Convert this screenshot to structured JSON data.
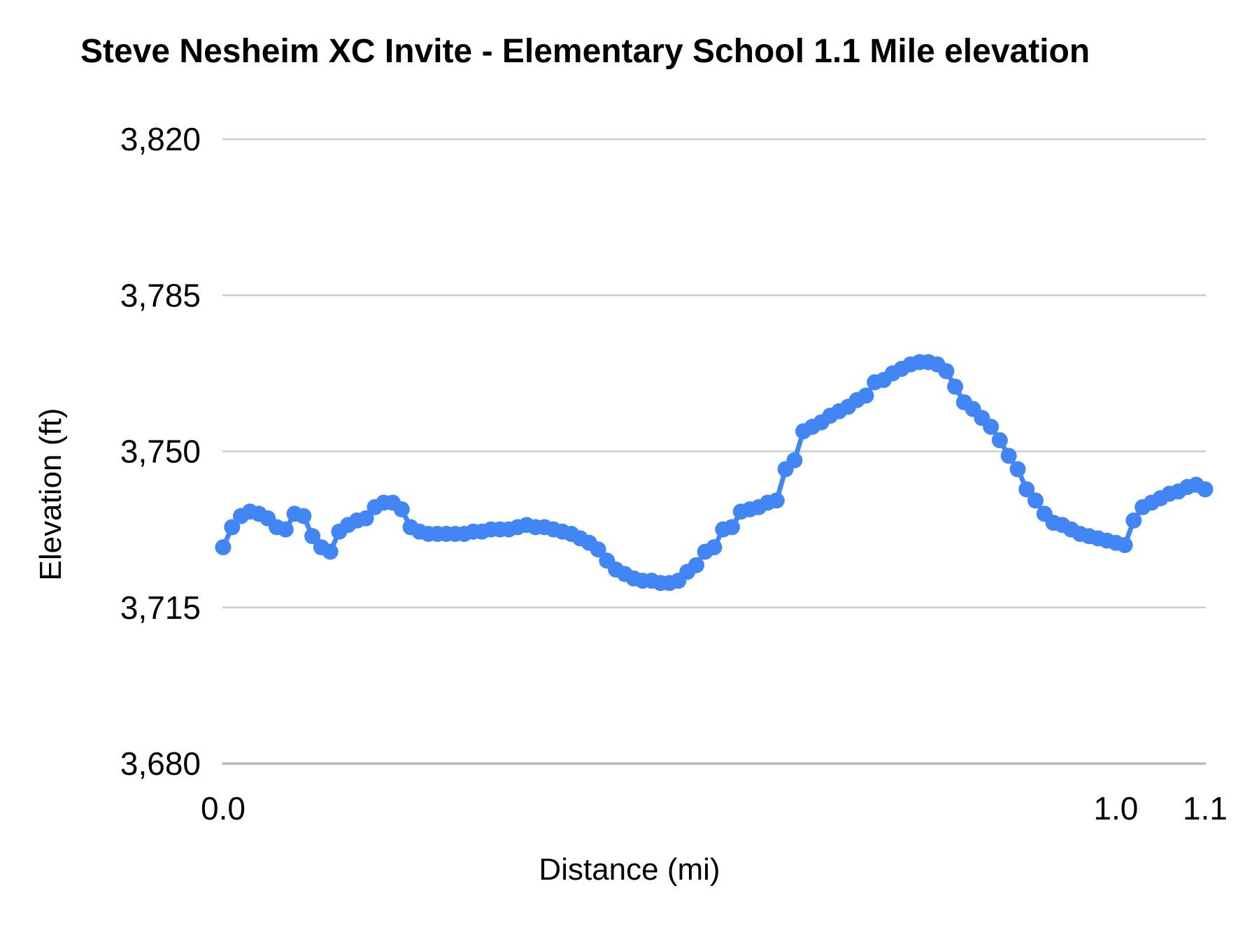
{
  "chart": {
    "title": "Steve Nesheim XC Invite - Elementary School 1.1 Mile elevation",
    "x_axis_label": "Distance (mi)",
    "y_axis_label": "Elevation (ft)"
  },
  "chart_data": {
    "type": "line",
    "title": "Steve Nesheim XC Invite - Elementary School 1.1 Mile elevation",
    "xlabel": "Distance (mi)",
    "ylabel": "Elevation (ft)",
    "xlim": [
      0,
      1.1
    ],
    "ylim": [
      3680,
      3820
    ],
    "grid": true,
    "legend": "none",
    "marker": "circle",
    "point_color": "#4285f4",
    "colors": {
      "grid": "#cccccc",
      "baseline": "#b7b7b7",
      "text": "#000000",
      "background": "#ffffff"
    },
    "x_ticks": [
      "0.0",
      "1.0",
      "1.1"
    ],
    "x_tick_values": [
      0,
      1.0,
      1.1
    ],
    "y_ticks": [
      "3,820",
      "3,785",
      "3,750",
      "3,715",
      "3,680"
    ],
    "y_tick_values": [
      3820,
      3785,
      3750,
      3715,
      3680
    ],
    "series": [
      {
        "name": "Elevation",
        "x": [
          0.0,
          0.01,
          0.02,
          0.03,
          0.04,
          0.05,
          0.06,
          0.07,
          0.08,
          0.09,
          0.1,
          0.11,
          0.12,
          0.13,
          0.14,
          0.15,
          0.16,
          0.17,
          0.18,
          0.19,
          0.2,
          0.21,
          0.22,
          0.23,
          0.24,
          0.25,
          0.26,
          0.27,
          0.28,
          0.29,
          0.3,
          0.31,
          0.32,
          0.33,
          0.34,
          0.35,
          0.36,
          0.37,
          0.38,
          0.39,
          0.4,
          0.41,
          0.42,
          0.43,
          0.44,
          0.45,
          0.46,
          0.47,
          0.48,
          0.49,
          0.5,
          0.51,
          0.52,
          0.53,
          0.54,
          0.55,
          0.56,
          0.57,
          0.58,
          0.59,
          0.6,
          0.61,
          0.62,
          0.63,
          0.64,
          0.65,
          0.66,
          0.67,
          0.68,
          0.69,
          0.7,
          0.71,
          0.72,
          0.73,
          0.74,
          0.75,
          0.76,
          0.77,
          0.78,
          0.79,
          0.8,
          0.81,
          0.82,
          0.83,
          0.84,
          0.85,
          0.86,
          0.87,
          0.88,
          0.89,
          0.9,
          0.91,
          0.92,
          0.93,
          0.94,
          0.95,
          0.96,
          0.97,
          0.98,
          0.99,
          1.0,
          1.01,
          1.02,
          1.03,
          1.04,
          1.05,
          1.06,
          1.07,
          1.08,
          1.09,
          1.1
        ],
        "y": [
          3728.5,
          3733,
          3735.5,
          3736.5,
          3736,
          3735,
          3733,
          3732.5,
          3736,
          3735.5,
          3731,
          3728.5,
          3727.5,
          3732,
          3733.5,
          3734.5,
          3735,
          3737.5,
          3738.5,
          3738.5,
          3737,
          3733,
          3732,
          3731.5,
          3731.5,
          3731.5,
          3731.5,
          3731.5,
          3732,
          3732,
          3732.5,
          3732.5,
          3732.5,
          3733,
          3733.5,
          3733,
          3733,
          3732.5,
          3732,
          3731.5,
          3730.5,
          3729.5,
          3728,
          3725.5,
          3723.5,
          3722.5,
          3721.5,
          3721,
          3721,
          3720.5,
          3720.5,
          3721,
          3723,
          3724.5,
          3727.5,
          3728.5,
          3732.5,
          3733,
          3736.5,
          3737,
          3737.5,
          3738.5,
          3739,
          3746,
          3748,
          3754.5,
          3755.5,
          3756.5,
          3758,
          3759,
          3760,
          3761.5,
          3762.5,
          3765.5,
          3766,
          3767.5,
          3768.5,
          3769.5,
          3770,
          3770,
          3769.5,
          3768,
          3764.5,
          3761,
          3759.5,
          3757.5,
          3755.5,
          3752.5,
          3749,
          3746,
          3741.5,
          3739,
          3736,
          3734,
          3733.5,
          3732.5,
          3731.5,
          3731,
          3730.5,
          3730,
          3729.5,
          3729,
          3734.5,
          3737.5,
          3738.5,
          3739.5,
          3740.5,
          3741,
          3742,
          3742.5,
          3741.5
        ]
      }
    ]
  }
}
